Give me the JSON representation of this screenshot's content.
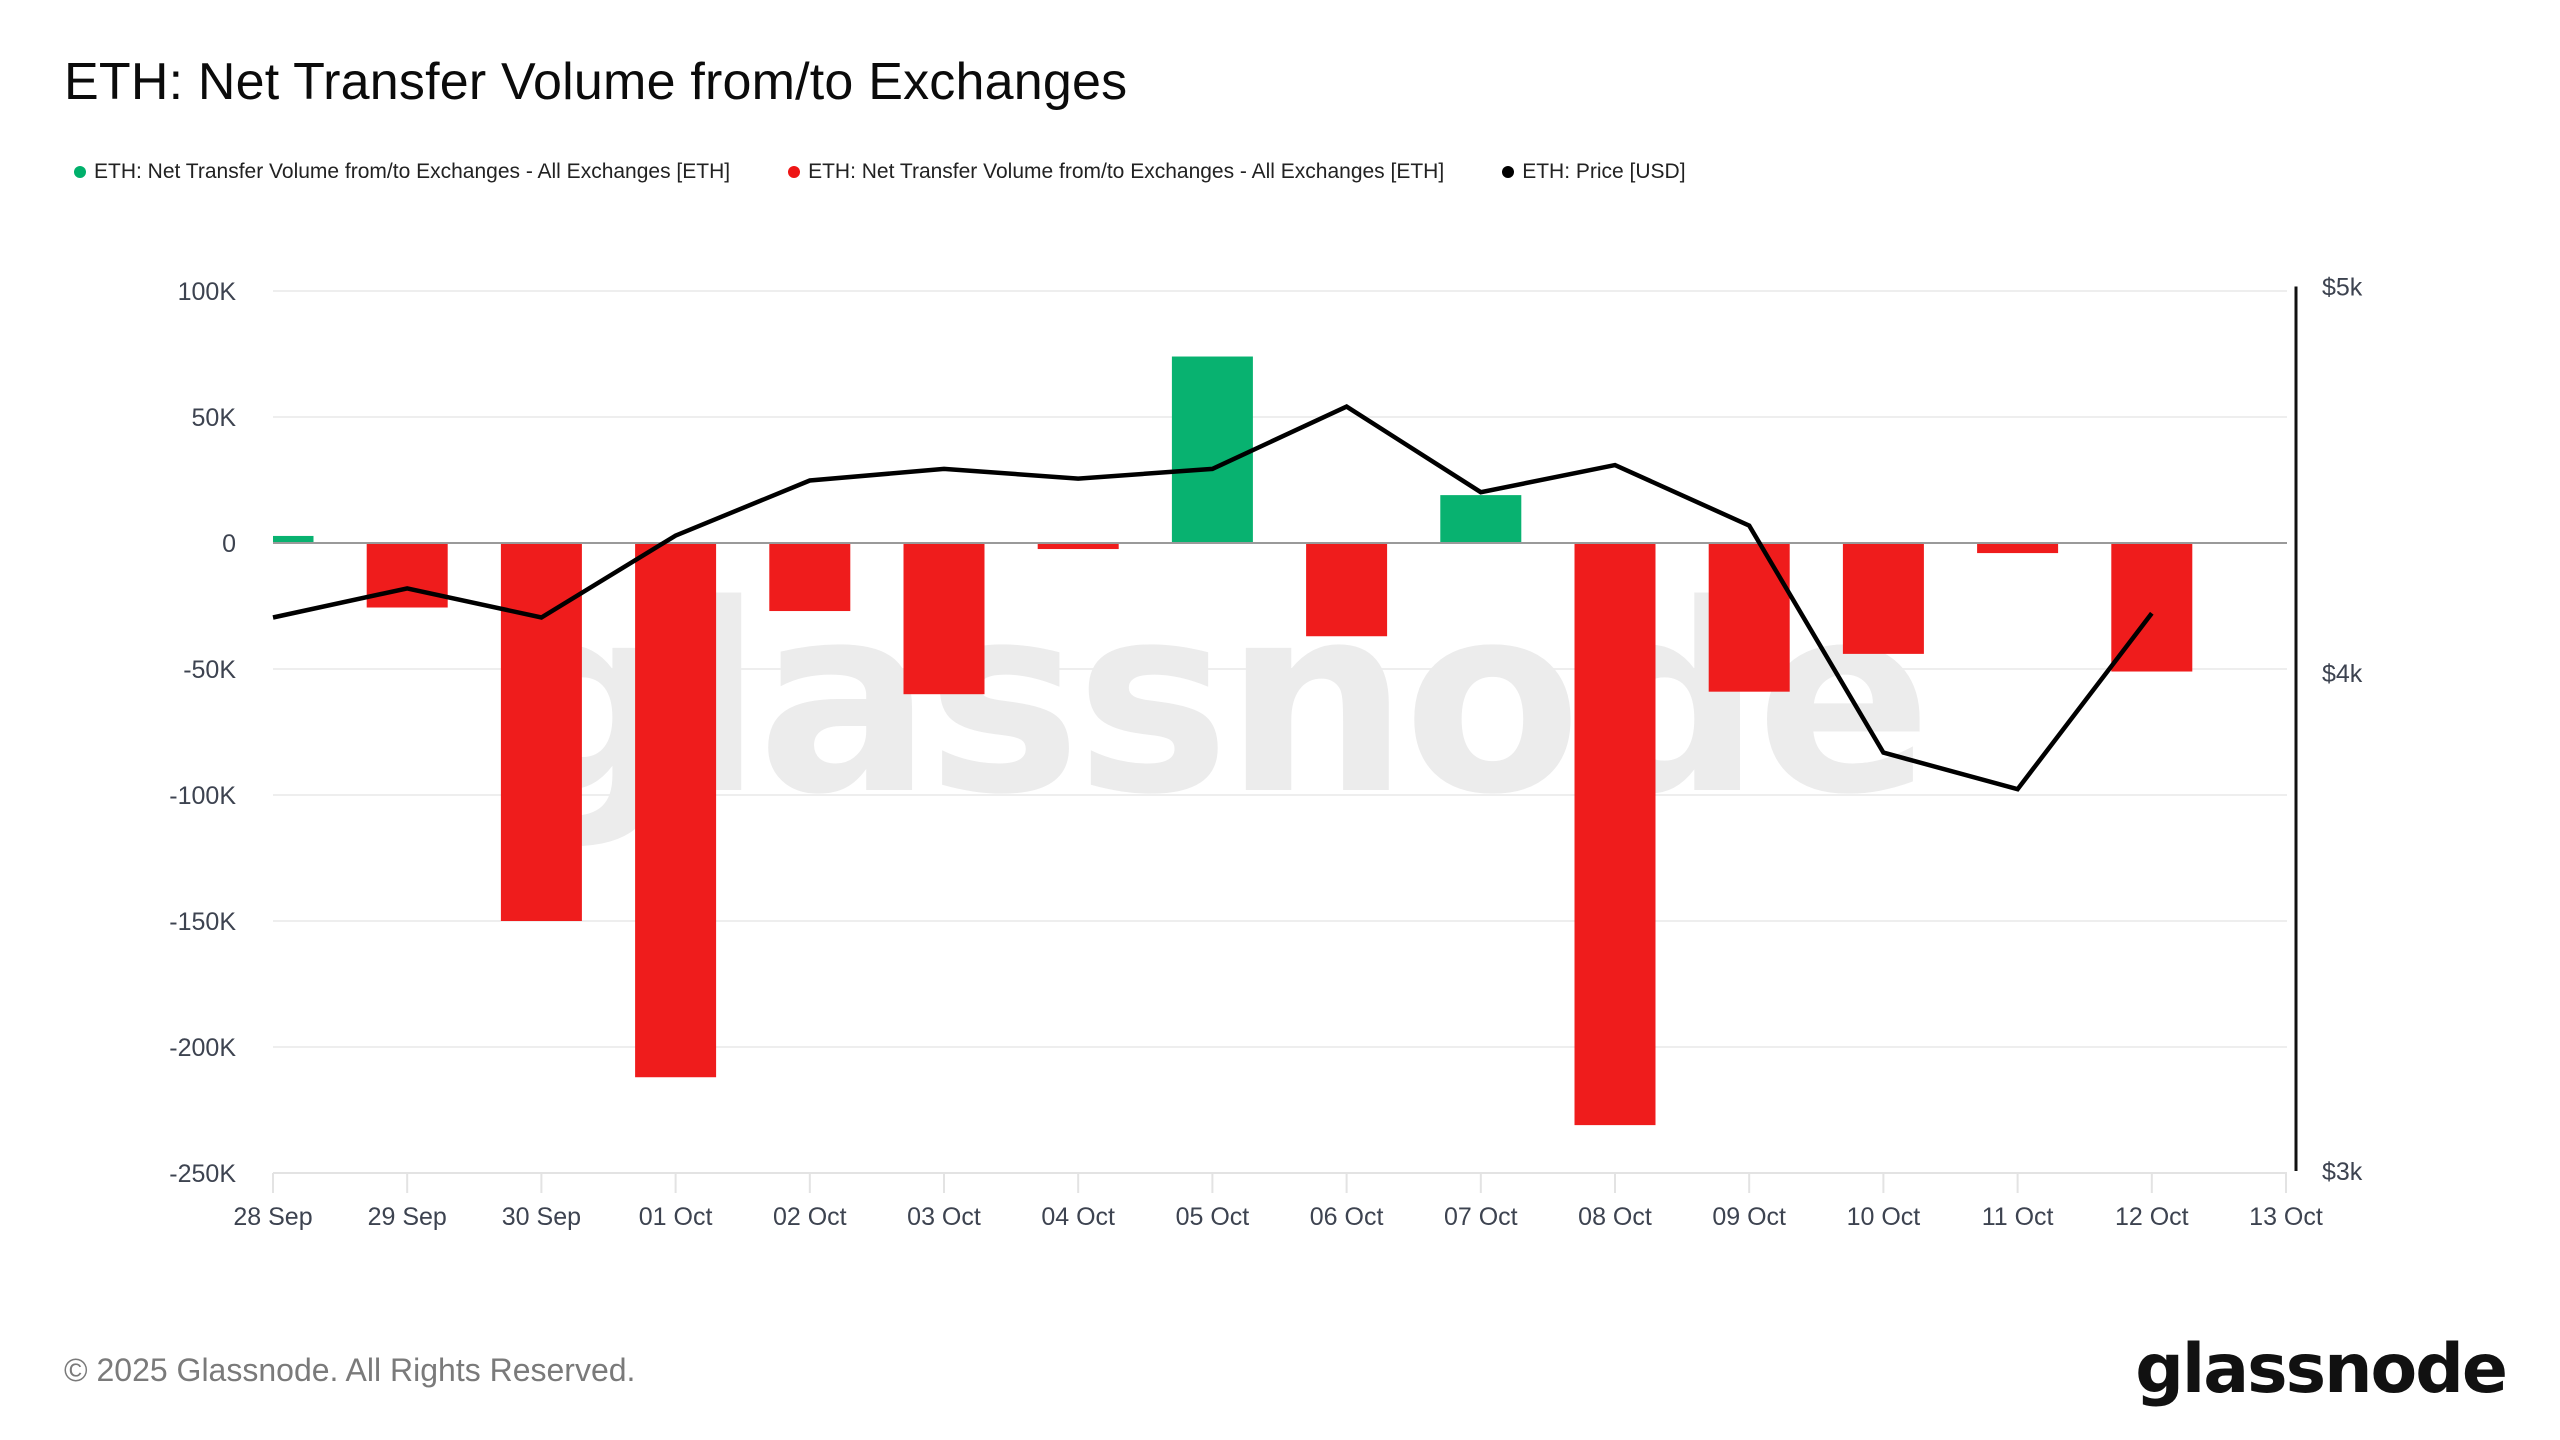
{
  "title": "ETH: Net Transfer Volume from/to Exchanges",
  "legend": [
    {
      "label": "ETH: Net Transfer Volume from/to Exchanges - All Exchanges [ETH]",
      "color": "#00b06b"
    },
    {
      "label": "ETH: Net Transfer Volume from/to Exchanges - All Exchanges [ETH]",
      "color": "#ee1515"
    },
    {
      "label": "ETH: Price [USD]",
      "color": "#000000"
    }
  ],
  "colors": {
    "positive": "#00b06b",
    "negative": "#ee1515",
    "price_line": "#000000",
    "grid": "#eeeeee",
    "zero_line": "#9a9a9a",
    "watermark": "#ececec"
  },
  "watermark": "glassnode",
  "footer": {
    "copyright": "© 2025 Glassnode. All Rights Reserved.",
    "logo": "glassnode"
  },
  "chart_data": {
    "type": "bar",
    "title": "ETH: Net Transfer Volume from/to Exchanges",
    "xlabel": "",
    "ylabel": "",
    "categories": [
      "28 Sep",
      "29 Sep",
      "30 Sep",
      "01 Oct",
      "02 Oct",
      "03 Oct",
      "04 Oct",
      "05 Oct",
      "06 Oct",
      "07 Oct",
      "08 Oct",
      "09 Oct",
      "10 Oct",
      "11 Oct",
      "12 Oct"
    ],
    "x_tick_labels": [
      "28 Sep",
      "29 Sep",
      "30 Sep",
      "01 Oct",
      "02 Oct",
      "03 Oct",
      "04 Oct",
      "05 Oct",
      "06 Oct",
      "07 Oct",
      "08 Oct",
      "09 Oct",
      "10 Oct",
      "11 Oct",
      "12 Oct",
      "13 Oct"
    ],
    "series": [
      {
        "name": "ETH: Net Transfer Volume from/to Exchanges - All Exchanges [ETH]",
        "type": "bar",
        "axis": "left",
        "color_rule": "green if positive, red if negative",
        "values": [
          2800,
          -25600,
          -150000,
          -212000,
          -27000,
          -60000,
          -2400,
          74000,
          -37000,
          19000,
          -231000,
          -59000,
          -44000,
          -4000,
          -51000
        ]
      },
      {
        "name": "ETH: Price [USD]",
        "type": "line",
        "axis": "right",
        "scale": "log",
        "values": [
          4130,
          4200,
          4130,
          4330,
          4470,
          4500,
          4475,
          4500,
          4665,
          4440,
          4510,
          4355,
          3820,
          3740,
          4140
        ]
      }
    ],
    "left_axis": {
      "ticks": [
        100000,
        50000,
        0,
        -50000,
        -100000,
        -150000,
        -200000,
        -250000
      ],
      "tick_labels": [
        "100K",
        "50K",
        "0",
        "-50K",
        "-100K",
        "-150K",
        "-200K",
        "-250K"
      ],
      "ylim": [
        -250000,
        100000
      ]
    },
    "right_axis": {
      "ticks": [
        5000,
        4000,
        3000
      ],
      "tick_labels": [
        "$5k",
        "$4k",
        "$3k"
      ],
      "ylim": [
        3000,
        5000
      ],
      "scale": "log"
    },
    "grid": true,
    "legend_position": "top-left"
  }
}
